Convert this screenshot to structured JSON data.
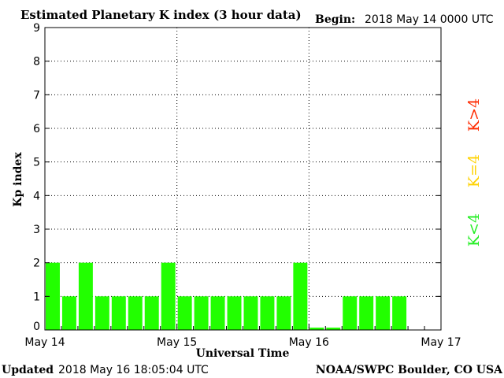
{
  "header": {
    "title": "Estimated Planetary K index (3 hour data)",
    "begin_label": "Begin:",
    "begin_value": "2018 May 14 0000 UTC"
  },
  "footer": {
    "updated_label": "Updated",
    "updated_value": "2018 May 16 18:05:04 UTC",
    "credit": "NOAA/SWPC Boulder, CO USA"
  },
  "legend": {
    "high": {
      "label": "K>4",
      "color": "#ff2a00"
    },
    "mid": {
      "label": "K=4",
      "color": "#ffd200"
    },
    "low": {
      "label": "K<4",
      "color": "#22ee22"
    }
  },
  "chart_data": {
    "type": "bar",
    "title": "Estimated Planetary K index (3 hour data)",
    "xlabel": "Universal Time",
    "ylabel": "Kp index",
    "ylim": [
      0,
      9
    ],
    "yticks": [
      "0",
      "1",
      "2",
      "3",
      "4",
      "5",
      "6",
      "7",
      "8",
      "9"
    ],
    "xticks": [
      "May 14",
      "May 15",
      "May 16",
      "May 17"
    ],
    "slots_per_day": 8,
    "grid": true,
    "bar_color": "#22ff00",
    "values": [
      2,
      1,
      2,
      1,
      1,
      1,
      1,
      2,
      1,
      1,
      1,
      1,
      1,
      1,
      1,
      2,
      0.07,
      0.07,
      1,
      1,
      1,
      1
    ]
  }
}
